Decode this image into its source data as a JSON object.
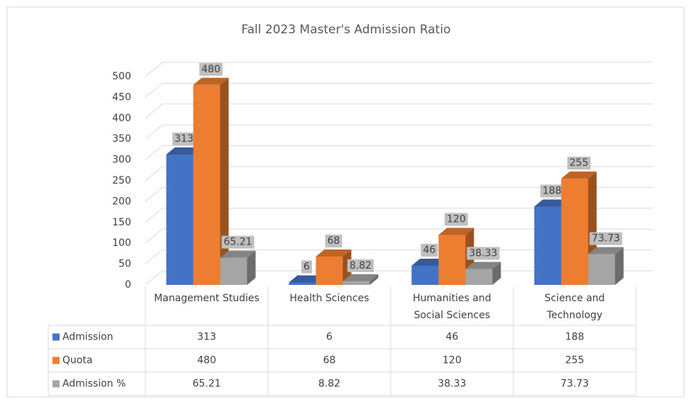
{
  "chart_data": {
    "type": "bar",
    "title": "Fall 2023 Master's Admission Ratio",
    "categories": [
      "Management Studies",
      "Health Sciences",
      "Humanities and Social Sciences",
      "Science and Technology"
    ],
    "series": [
      {
        "name": "Admission",
        "color": "#4472c4",
        "values": [
          313,
          6,
          46,
          188
        ]
      },
      {
        "name": "Quota",
        "color": "#ed7d31",
        "values": [
          480,
          68,
          120,
          255
        ]
      },
      {
        "name": "Admission %",
        "color": "#a5a5a5",
        "values": [
          65.21,
          8.82,
          38.33,
          73.73
        ]
      }
    ],
    "ylim": [
      0,
      500
    ],
    "yticks": [
      0,
      50,
      100,
      150,
      200,
      250,
      300,
      350,
      400,
      450,
      500
    ],
    "grid": true
  }
}
